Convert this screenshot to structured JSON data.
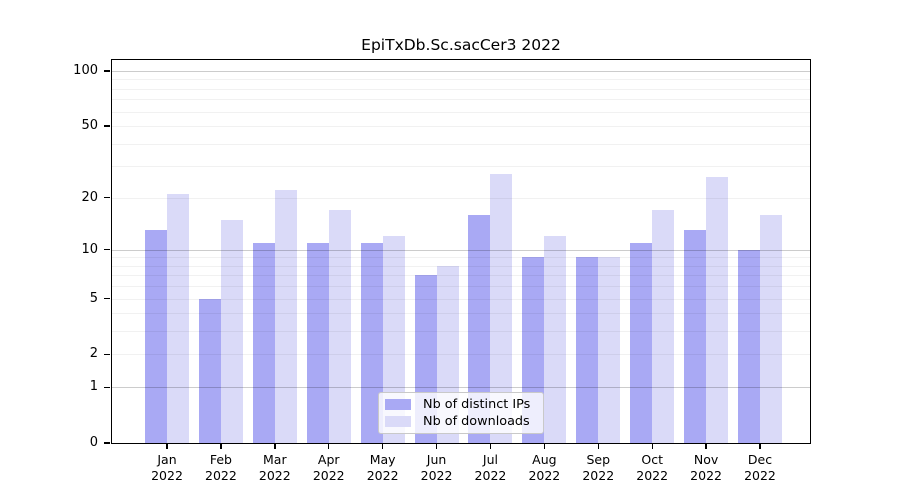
{
  "chart_data": {
    "type": "bar",
    "title": "EpiTxDb.Sc.sacCer3 2022",
    "year": "2022",
    "months": [
      "Jan",
      "Feb",
      "Mar",
      "Apr",
      "May",
      "Jun",
      "Jul",
      "Aug",
      "Sep",
      "Oct",
      "Nov",
      "Dec"
    ],
    "series": [
      {
        "name": "Nb of distinct IPs",
        "color": "#a9a9f4",
        "values": [
          13,
          5,
          11,
          11,
          11,
          7,
          16,
          9,
          9,
          11,
          13,
          10
        ]
      },
      {
        "name": "Nb of downloads",
        "color": "#dadaf8",
        "values": [
          21,
          15,
          22,
          17,
          12,
          8,
          27,
          12,
          9,
          17,
          26,
          16
        ]
      }
    ],
    "y_axis": {
      "scale": "log1p",
      "ylim": [
        0,
        100
      ],
      "tick_values": [
        0,
        1,
        2,
        5,
        10,
        20,
        50,
        100
      ],
      "major_gridlines": [
        1,
        10,
        100
      ],
      "minor_gridlines": [
        2,
        3,
        4,
        5,
        6,
        7,
        8,
        9,
        20,
        30,
        40,
        50,
        60,
        70,
        80,
        90
      ]
    },
    "grid": "on",
    "legend": {
      "position": "bottom-center"
    },
    "colors": {
      "axis": "#000000",
      "background": "#ffffff",
      "legend_border": "#c9c9c9"
    }
  }
}
